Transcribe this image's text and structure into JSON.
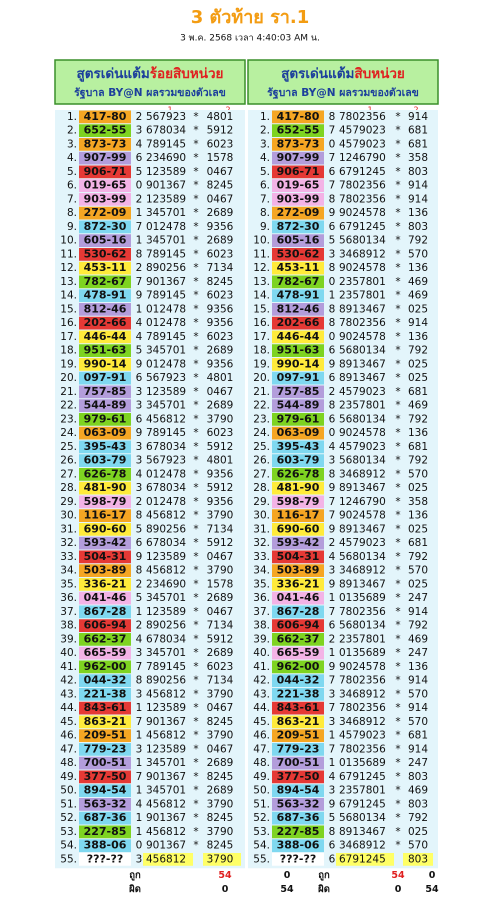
{
  "title": "3 ตัวท้าย รา.1",
  "subtitle": "3 พ.ค. 2568 เวลา 4:40:03 AM น.",
  "row_colors": [
    "#f5a623",
    "#7ed321",
    "#f5a623",
    "#b39ddb",
    "#e53935",
    "#f3b3e6",
    "#f3b3e6",
    "#f5a623",
    "#7fd8f0",
    "#b39ddb",
    "#e53935",
    "#ffeb3b",
    "#7ed321",
    "#7fd8f0",
    "#b39ddb",
    "#e53935",
    "#ffeb3b",
    "#7ed321",
    "#ffeb3b",
    "#7fd8f0",
    "#b39ddb",
    "#b39ddb",
    "#7ed321",
    "#f5a623",
    "#7fd8f0",
    "#7fd8f0",
    "#7ed321",
    "#ffeb3b",
    "#f3b3e6",
    "#f5a623",
    "#ffeb3b",
    "#b39ddb",
    "#e53935",
    "#f5a623",
    "#ffeb3b",
    "#f3b3e6",
    "#7fd8f0",
    "#e53935",
    "#7ed321",
    "#f3b3e6",
    "#7ed321",
    "#7fd8f0",
    "#7fd8f0",
    "#e53935",
    "#ffeb3b",
    "#f5a623",
    "#7fd8f0",
    "#b39ddb",
    "#e53935",
    "#7fd8f0",
    "#b39ddb",
    "#7fd8f0",
    "#7ed321",
    "#7fd8f0",
    "#ffffff"
  ],
  "tables": [
    {
      "header_main": "สูตรเด่นแต้ม",
      "header_highlight": "ร้อยสิบหน่วย",
      "subheader": "รัฐบาล BY@N ผลรวมของตัวเลข",
      "col_labels": [
        "1",
        "2"
      ],
      "rows": [
        [
          "1.",
          "417-80",
          "2",
          "567923",
          "*",
          "4801"
        ],
        [
          "2.",
          "652-55",
          "3",
          "678034",
          "*",
          "5912"
        ],
        [
          "3.",
          "873-73",
          "4",
          "789145",
          "*",
          "6023"
        ],
        [
          "4.",
          "907-99",
          "6",
          "234690",
          "*",
          "1578"
        ],
        [
          "5.",
          "906-71",
          "5",
          "123589",
          "*",
          "0467"
        ],
        [
          "6.",
          "019-65",
          "0",
          "901367",
          "*",
          "8245"
        ],
        [
          "7.",
          "903-99",
          "2",
          "123589",
          "*",
          "0467"
        ],
        [
          "8.",
          "272-09",
          "1",
          "345701",
          "*",
          "2689"
        ],
        [
          "9.",
          "872-30",
          "7",
          "012478",
          "*",
          "9356"
        ],
        [
          "10.",
          "605-16",
          "1",
          "345701",
          "*",
          "2689"
        ],
        [
          "11.",
          "530-62",
          "8",
          "789145",
          "*",
          "6023"
        ],
        [
          "12.",
          "453-11",
          "2",
          "890256",
          "*",
          "7134"
        ],
        [
          "13.",
          "782-67",
          "7",
          "901367",
          "*",
          "8245"
        ],
        [
          "14.",
          "478-91",
          "9",
          "789145",
          "*",
          "6023"
        ],
        [
          "15.",
          "812-46",
          "1",
          "012478",
          "*",
          "9356"
        ],
        [
          "16.",
          "202-66",
          "4",
          "012478",
          "*",
          "9356"
        ],
        [
          "17.",
          "446-44",
          "4",
          "789145",
          "*",
          "6023"
        ],
        [
          "18.",
          "951-63",
          "5",
          "345701",
          "*",
          "2689"
        ],
        [
          "19.",
          "990-14",
          "9",
          "012478",
          "*",
          "9356"
        ],
        [
          "20.",
          "097-91",
          "6",
          "567923",
          "*",
          "4801"
        ],
        [
          "21.",
          "757-85",
          "3",
          "123589",
          "*",
          "0467"
        ],
        [
          "22.",
          "544-89",
          "3",
          "345701",
          "*",
          "2689"
        ],
        [
          "23.",
          "979-61",
          "6",
          "456812",
          "*",
          "3790"
        ],
        [
          "24.",
          "063-09",
          "9",
          "789145",
          "*",
          "6023"
        ],
        [
          "25.",
          "395-43",
          "3",
          "678034",
          "*",
          "5912"
        ],
        [
          "26.",
          "603-79",
          "3",
          "567923",
          "*",
          "4801"
        ],
        [
          "27.",
          "626-78",
          "4",
          "012478",
          "*",
          "9356"
        ],
        [
          "28.",
          "481-90",
          "3",
          "678034",
          "*",
          "5912"
        ],
        [
          "29.",
          "598-79",
          "2",
          "012478",
          "*",
          "9356"
        ],
        [
          "30.",
          "116-17",
          "8",
          "456812",
          "*",
          "3790"
        ],
        [
          "31.",
          "690-60",
          "5",
          "890256",
          "*",
          "7134"
        ],
        [
          "32.",
          "593-42",
          "6",
          "678034",
          "*",
          "5912"
        ],
        [
          "33.",
          "504-31",
          "9",
          "123589",
          "*",
          "0467"
        ],
        [
          "34.",
          "503-89",
          "8",
          "456812",
          "*",
          "3790"
        ],
        [
          "35.",
          "336-21",
          "2",
          "234690",
          "*",
          "1578"
        ],
        [
          "36.",
          "041-46",
          "5",
          "345701",
          "*",
          "2689"
        ],
        [
          "37.",
          "867-28",
          "1",
          "123589",
          "*",
          "0467"
        ],
        [
          "38.",
          "606-94",
          "2",
          "890256",
          "*",
          "7134"
        ],
        [
          "39.",
          "662-37",
          "4",
          "678034",
          "*",
          "5912"
        ],
        [
          "40.",
          "665-59",
          "3",
          "345701",
          "*",
          "2689"
        ],
        [
          "41.",
          "962-00",
          "7",
          "789145",
          "*",
          "6023"
        ],
        [
          "42.",
          "044-32",
          "8",
          "890256",
          "*",
          "7134"
        ],
        [
          "43.",
          "221-38",
          "3",
          "456812",
          "*",
          "3790"
        ],
        [
          "44.",
          "843-61",
          "1",
          "123589",
          "*",
          "0467"
        ],
        [
          "45.",
          "863-21",
          "7",
          "901367",
          "*",
          "8245"
        ],
        [
          "46.",
          "209-51",
          "1",
          "456812",
          "*",
          "3790"
        ],
        [
          "47.",
          "779-23",
          "3",
          "123589",
          "*",
          "0467"
        ],
        [
          "48.",
          "700-51",
          "1",
          "345701",
          "*",
          "2689"
        ],
        [
          "49.",
          "377-50",
          "7",
          "901367",
          "*",
          "8245"
        ],
        [
          "50.",
          "894-54",
          "1",
          "345701",
          "*",
          "2689"
        ],
        [
          "51.",
          "563-32",
          "4",
          "456812",
          "*",
          "3790"
        ],
        [
          "52.",
          "687-36",
          "1",
          "901367",
          "*",
          "8245"
        ],
        [
          "53.",
          "227-85",
          "1",
          "456812",
          "*",
          "3790"
        ],
        [
          "54.",
          "388-06",
          "0",
          "901367",
          "*",
          "8245"
        ],
        [
          "55.",
          "???-??",
          "3",
          "456812",
          null,
          "3790"
        ]
      ],
      "footer": [
        [
          "ถูก",
          "54",
          "0"
        ],
        [
          "ผิด",
          "0",
          "54"
        ]
      ]
    },
    {
      "header_main": "สูตรเด่นแต้ม",
      "header_highlight": "สิบหน่วย",
      "subheader": "รัฐบาล BY@N ผลรวมของตัวเลข",
      "col_labels": [
        "1",
        "2"
      ],
      "rows": [
        [
          "1.",
          "417-80",
          "8",
          "7802356",
          "*",
          "914"
        ],
        [
          "2.",
          "652-55",
          "7",
          "4579023",
          "*",
          "681"
        ],
        [
          "3.",
          "873-73",
          "0",
          "4579023",
          "*",
          "681"
        ],
        [
          "4.",
          "907-99",
          "7",
          "1246790",
          "*",
          "358"
        ],
        [
          "5.",
          "906-71",
          "6",
          "6791245",
          "*",
          "803"
        ],
        [
          "6.",
          "019-65",
          "7",
          "7802356",
          "*",
          "914"
        ],
        [
          "7.",
          "903-99",
          "8",
          "7802356",
          "*",
          "914"
        ],
        [
          "8.",
          "272-09",
          "9",
          "9024578",
          "*",
          "136"
        ],
        [
          "9.",
          "872-30",
          "6",
          "6791245",
          "*",
          "803"
        ],
        [
          "10.",
          "605-16",
          "5",
          "5680134",
          "*",
          "792"
        ],
        [
          "11.",
          "530-62",
          "3",
          "3468912",
          "*",
          "570"
        ],
        [
          "12.",
          "453-11",
          "8",
          "9024578",
          "*",
          "136"
        ],
        [
          "13.",
          "782-67",
          "0",
          "2357801",
          "*",
          "469"
        ],
        [
          "14.",
          "478-91",
          "1",
          "2357801",
          "*",
          "469"
        ],
        [
          "15.",
          "812-46",
          "8",
          "8913467",
          "*",
          "025"
        ],
        [
          "16.",
          "202-66",
          "8",
          "7802356",
          "*",
          "914"
        ],
        [
          "17.",
          "446-44",
          "0",
          "9024578",
          "*",
          "136"
        ],
        [
          "18.",
          "951-63",
          "6",
          "5680134",
          "*",
          "792"
        ],
        [
          "19.",
          "990-14",
          "9",
          "8913467",
          "*",
          "025"
        ],
        [
          "20.",
          "097-91",
          "6",
          "8913467",
          "*",
          "025"
        ],
        [
          "21.",
          "757-85",
          "2",
          "4579023",
          "*",
          "681"
        ],
        [
          "22.",
          "544-89",
          "8",
          "2357801",
          "*",
          "469"
        ],
        [
          "23.",
          "979-61",
          "6",
          "5680134",
          "*",
          "792"
        ],
        [
          "24.",
          "063-09",
          "0",
          "9024578",
          "*",
          "136"
        ],
        [
          "25.",
          "395-43",
          "4",
          "4579023",
          "*",
          "681"
        ],
        [
          "26.",
          "603-79",
          "3",
          "5680134",
          "*",
          "792"
        ],
        [
          "27.",
          "626-78",
          "8",
          "3468912",
          "*",
          "570"
        ],
        [
          "28.",
          "481-90",
          "9",
          "8913467",
          "*",
          "025"
        ],
        [
          "29.",
          "598-79",
          "7",
          "1246790",
          "*",
          "358"
        ],
        [
          "30.",
          "116-17",
          "7",
          "9024578",
          "*",
          "136"
        ],
        [
          "31.",
          "690-60",
          "9",
          "8913467",
          "*",
          "025"
        ],
        [
          "32.",
          "593-42",
          "2",
          "4579023",
          "*",
          "681"
        ],
        [
          "33.",
          "504-31",
          "4",
          "5680134",
          "*",
          "792"
        ],
        [
          "34.",
          "503-89",
          "3",
          "3468912",
          "*",
          "570"
        ],
        [
          "35.",
          "336-21",
          "9",
          "8913467",
          "*",
          "025"
        ],
        [
          "36.",
          "041-46",
          "1",
          "0135689",
          "*",
          "247"
        ],
        [
          "37.",
          "867-28",
          "7",
          "7802356",
          "*",
          "914"
        ],
        [
          "38.",
          "606-94",
          "6",
          "5680134",
          "*",
          "792"
        ],
        [
          "39.",
          "662-37",
          "2",
          "2357801",
          "*",
          "469"
        ],
        [
          "40.",
          "665-59",
          "1",
          "0135689",
          "*",
          "247"
        ],
        [
          "41.",
          "962-00",
          "9",
          "9024578",
          "*",
          "136"
        ],
        [
          "42.",
          "044-32",
          "7",
          "7802356",
          "*",
          "914"
        ],
        [
          "43.",
          "221-38",
          "3",
          "3468912",
          "*",
          "570"
        ],
        [
          "44.",
          "843-61",
          "7",
          "7802356",
          "*",
          "914"
        ],
        [
          "45.",
          "863-21",
          "3",
          "3468912",
          "*",
          "570"
        ],
        [
          "46.",
          "209-51",
          "1",
          "4579023",
          "*",
          "681"
        ],
        [
          "47.",
          "779-23",
          "7",
          "7802356",
          "*",
          "914"
        ],
        [
          "48.",
          "700-51",
          "1",
          "0135689",
          "*",
          "247"
        ],
        [
          "49.",
          "377-50",
          "4",
          "6791245",
          "*",
          "803"
        ],
        [
          "50.",
          "894-54",
          "3",
          "2357801",
          "*",
          "469"
        ],
        [
          "51.",
          "563-32",
          "9",
          "6791245",
          "*",
          "803"
        ],
        [
          "52.",
          "687-36",
          "5",
          "5680134",
          "*",
          "792"
        ],
        [
          "53.",
          "227-85",
          "8",
          "8913467",
          "*",
          "025"
        ],
        [
          "54.",
          "388-06",
          "6",
          "3468912",
          "*",
          "570"
        ],
        [
          "55.",
          "???-??",
          "6",
          "6791245",
          null,
          "803"
        ]
      ],
      "footer": [
        [
          "ถูก",
          "54",
          "0"
        ],
        [
          "ผิด",
          "0",
          "54"
        ]
      ]
    }
  ]
}
